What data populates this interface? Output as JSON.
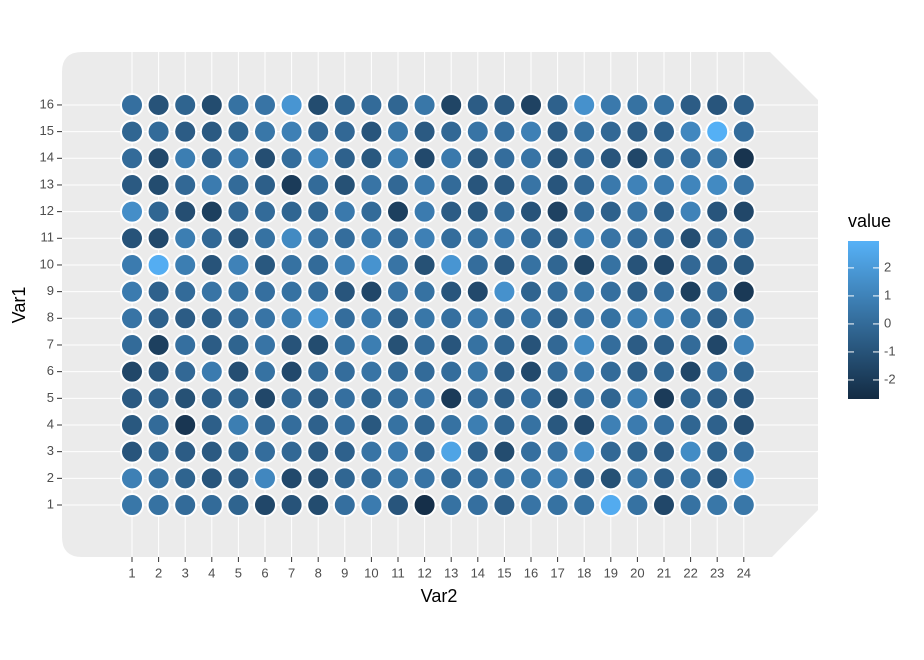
{
  "chart_data": {
    "type": "heatmap",
    "x_label": "Var2",
    "y_label": "Var1",
    "x_categories": [
      1,
      2,
      3,
      4,
      5,
      6,
      7,
      8,
      9,
      10,
      11,
      12,
      13,
      14,
      15,
      16,
      17,
      18,
      19,
      20,
      21,
      22,
      23,
      24
    ],
    "y_categories": [
      1,
      2,
      3,
      4,
      5,
      6,
      7,
      8,
      9,
      10,
      11,
      12,
      13,
      14,
      15,
      16
    ],
    "values": [
      [
        0.5,
        0.3,
        0,
        0,
        -0.3,
        -1.5,
        -1.0,
        -1.3,
        0.2,
        0.7,
        -0.9,
        -2.5,
        0.3,
        0.2,
        -0.5,
        0.4,
        0.3,
        0.3,
        2.7,
        0.3,
        -1.5,
        0.3,
        0.5,
        0.5
      ],
      [
        0.9,
        0.3,
        -0.3,
        -0.9,
        -0.6,
        1.2,
        -1.4,
        -1.2,
        -0.2,
        0,
        0.5,
        0.4,
        0,
        0.2,
        0.3,
        0.5,
        0.9,
        -0.4,
        -1.1,
        0.5,
        -0.5,
        0.3,
        -0.9,
        1.8
      ],
      [
        -0.9,
        -0.2,
        -0.6,
        -0.7,
        -0.3,
        0.1,
        -0.1,
        -0.7,
        -0.4,
        0.4,
        0.7,
        -0.1,
        2.4,
        -0.4,
        -1.3,
        0.2,
        0.4,
        1.5,
        -0.1,
        -0.3,
        -0.6,
        1.4,
        -0.3,
        0.2
      ],
      [
        -0.8,
        0,
        -2.2,
        -0.5,
        0.8,
        -0.1,
        0.1,
        -0.4,
        0.1,
        -0.8,
        0.3,
        -0.2,
        0.3,
        0.8,
        -0.2,
        0.3,
        -0.8,
        -1.4,
        0.9,
        0.7,
        0.2,
        -0.2,
        -0.4,
        -1.2
      ],
      [
        -0.7,
        -0.4,
        -1.1,
        -0.5,
        -0.3,
        -1.5,
        -0.1,
        -0.6,
        0.2,
        -0.2,
        0.1,
        0.4,
        -2.0,
        0.1,
        -0.5,
        0.2,
        -1.3,
        0.3,
        -0.2,
        0.8,
        -2.0,
        -0.2,
        -0.5,
        -0.9
      ],
      [
        -1.5,
        -0.9,
        -0.1,
        0.7,
        -1.2,
        0.3,
        -1.4,
        0,
        0.1,
        0.4,
        0,
        0,
        0.1,
        0.5,
        -0.5,
        -1.4,
        0,
        0.6,
        0,
        -0.5,
        -0.2,
        -1.5,
        0.2,
        -0.2
      ],
      [
        0,
        -1.8,
        0.2,
        -0.6,
        -0.3,
        0.4,
        -1.0,
        -1.3,
        0.3,
        0.8,
        -1.1,
        0,
        -0.9,
        0.3,
        -0.2,
        -1.0,
        -0.1,
        1.3,
        0.1,
        -0.6,
        -0.5,
        0,
        -1.5,
        1.0
      ],
      [
        0.4,
        -0.4,
        -0.6,
        -0.5,
        0,
        0.4,
        0.8,
        1.8,
        0.1,
        0.6,
        -0.4,
        0.5,
        0.2,
        0.6,
        0,
        0.4,
        -0.4,
        0.4,
        0.3,
        0.8,
        0.8,
        0.3,
        -0.4,
        0.5
      ],
      [
        0.7,
        -0.4,
        0,
        0.4,
        0.3,
        0.2,
        0.3,
        0.1,
        -0.9,
        -1.5,
        0.4,
        0.3,
        -0.9,
        -1.4,
        1.6,
        -0.3,
        0.1,
        0.5,
        0.2,
        -0.5,
        0.1,
        -1.8,
        0,
        -2.1
      ],
      [
        0.7,
        2.8,
        0.8,
        -1.0,
        1.0,
        -0.8,
        0.3,
        0,
        0.9,
        1.7,
        0.4,
        -1.1,
        1.8,
        0.1,
        -0.7,
        0.3,
        -0.2,
        -1.6,
        0.3,
        -1.0,
        -1.5,
        -0.1,
        -0.4,
        -0.8
      ],
      [
        -1.0,
        -1.4,
        0.8,
        -0.1,
        -1.0,
        0.3,
        1.3,
        0.4,
        0.1,
        0.6,
        0.1,
        0.9,
        0.1,
        0.3,
        0.7,
        0,
        -0.6,
        0.8,
        0.4,
        0.1,
        0,
        -1.2,
        0,
        0
      ],
      [
        1.5,
        -0.2,
        -1.2,
        -1.8,
        -0.1,
        0,
        -0.2,
        -0.2,
        0.6,
        0,
        -1.8,
        0.7,
        -0.6,
        -0.8,
        0,
        -1.0,
        -1.7,
        0,
        -0.4,
        0.4,
        -0.4,
        1.0,
        -0.9,
        -1.5
      ],
      [
        -0.7,
        -1.3,
        -0.1,
        0.7,
        0,
        -0.5,
        -2.0,
        0,
        -1.1,
        0.4,
        -0.1,
        0.6,
        0,
        -0.9,
        -0.7,
        0.4,
        -0.9,
        -0.1,
        0.6,
        1.0,
        0.7,
        1.1,
        1.3,
        0.4
      ],
      [
        0,
        -1.4,
        0.8,
        -0.4,
        0.7,
        -1.2,
        0.1,
        1.2,
        -0.4,
        -0.8,
        0.8,
        -1.4,
        0.6,
        -0.7,
        0.1,
        0.4,
        -1.0,
        0,
        -0.9,
        -1.5,
        -0.2,
        0.2,
        0.5,
        -2.3
      ],
      [
        -0.2,
        0,
        -0.6,
        -0.7,
        -0.3,
        0.5,
        0.9,
        -0.1,
        -0.1,
        -0.9,
        0.5,
        -0.7,
        -0.1,
        0.4,
        0.2,
        0.9,
        -0.6,
        0.3,
        -0.1,
        -0.6,
        -0.4,
        1.2,
        2.9,
        0.1
      ],
      [
        0.2,
        -1.0,
        -0.3,
        -1.3,
        0.3,
        0.4,
        1.8,
        -1.3,
        -0.3,
        0,
        -0.2,
        0.5,
        -1.6,
        -0.6,
        -0.7,
        -1.7,
        -0.4,
        1.6,
        0.6,
        0.3,
        0.3,
        -0.6,
        -0.9,
        -0.5
      ]
    ],
    "legend": {
      "title": "value",
      "lim": [
        -2.68,
        2.96
      ],
      "ticks": [
        -2,
        -1,
        0,
        1,
        2
      ],
      "colors": [
        "#132B43",
        "#56B1F7"
      ]
    }
  }
}
